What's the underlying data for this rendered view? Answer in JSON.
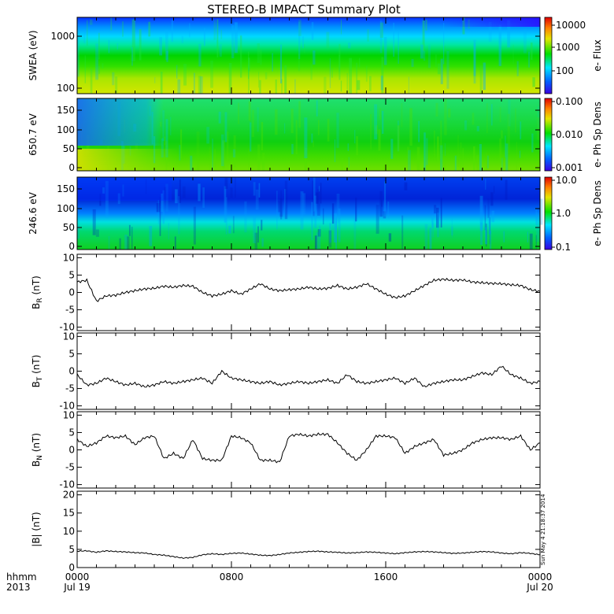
{
  "chart_data": {
    "type": "line",
    "title": "STEREO-B IMPACT Summary Plot",
    "x_axis": {
      "tick_labels": [
        "0000",
        "0800",
        "1600",
        "0000"
      ],
      "date_labels": [
        "Jul 19",
        "",
        "",
        "Jul 20"
      ],
      "row_labels": [
        "hhmm",
        "2013"
      ]
    },
    "timestamp": "Sun May  4 21:18:37 2014",
    "spectrograms": [
      {
        "id": "swea",
        "ylabel": "SWEA (eV)",
        "y_ticks": [
          "1000",
          "100"
        ],
        "colorbar_label": "e- Flux",
        "colorbar_ticks": [
          "10000",
          "1000",
          "100"
        ]
      },
      {
        "id": "pad650",
        "ylabel": "650.7 eV",
        "y_ticks": [
          "150",
          "100",
          "50",
          "0"
        ],
        "colorbar_label": "e- Ph Sp Dens",
        "colorbar_ticks": [
          "0.100",
          "0.010",
          "0.001"
        ]
      },
      {
        "id": "pad246",
        "ylabel": "246.6 eV",
        "y_ticks": [
          "150",
          "100",
          "50",
          "0"
        ],
        "colorbar_label": "e- Ph Sp Dens",
        "colorbar_ticks": [
          "10.0",
          "1.0",
          "0.1"
        ]
      }
    ],
    "series": [
      {
        "id": "br",
        "ylabel_main": "B",
        "ylabel_sub": "R",
        "ylabel_unit": "(nT)",
        "ylim": [
          -11,
          11
        ],
        "y_ticks": [
          "10",
          "5",
          "0",
          "-5",
          "-10"
        ],
        "x": [
          0,
          0.5,
          1,
          1.5,
          2,
          2.5,
          3,
          3.5,
          4,
          4.5,
          5,
          5.5,
          6,
          6.5,
          7,
          7.5,
          8,
          8.5,
          9,
          9.5,
          10,
          10.5,
          11,
          11.5,
          12,
          12.5,
          13,
          13.5,
          14,
          14.5,
          15,
          15.5,
          16,
          16.5,
          17,
          17.5,
          18,
          18.5,
          19,
          19.5,
          20,
          20.5,
          21,
          21.5,
          22,
          22.5,
          23,
          23.5,
          24
        ],
        "values": [
          3,
          3.5,
          -2.5,
          -1,
          -0.8,
          0,
          0.5,
          1,
          1.2,
          1.8,
          1.5,
          2,
          1.8,
          0,
          -1,
          -0.5,
          0.5,
          -0.5,
          1,
          2.5,
          1,
          0.5,
          0.8,
          1,
          1.5,
          1,
          1.2,
          2,
          1,
          1.5,
          2.5,
          1,
          -0.5,
          -1.5,
          -1,
          0.5,
          2,
          3.5,
          3.8,
          3.5,
          3.6,
          3,
          2.8,
          2.6,
          2.5,
          2.2,
          2,
          0.8,
          0.3
        ]
      },
      {
        "id": "bt",
        "ylabel_main": "B",
        "ylabel_sub": "T",
        "ylabel_unit": "(nT)",
        "ylim": [
          -11,
          11
        ],
        "y_ticks": [
          "10",
          "5",
          "0",
          "-5",
          "-10"
        ],
        "x": [
          0,
          0.5,
          1,
          1.5,
          2,
          2.5,
          3,
          3.5,
          4,
          4.5,
          5,
          5.5,
          6,
          6.5,
          7,
          7.5,
          8,
          8.5,
          9,
          9.5,
          10,
          10.5,
          11,
          11.5,
          12,
          12.5,
          13,
          13.5,
          14,
          14.5,
          15,
          15.5,
          16,
          16.5,
          17,
          17.5,
          18,
          18.5,
          19,
          19.5,
          20,
          20.5,
          21,
          21.5,
          22,
          22.5,
          23,
          23.5,
          24
        ],
        "values": [
          -1,
          -4,
          -3.5,
          -2,
          -3,
          -4,
          -3.5,
          -4.5,
          -4,
          -3,
          -3.5,
          -3,
          -2.5,
          -2,
          -3.5,
          0,
          -2,
          -2.5,
          -3,
          -3.5,
          -3,
          -4,
          -3.5,
          -3,
          -3.5,
          -3,
          -2.5,
          -3.5,
          -1,
          -3,
          -3.5,
          -3,
          -2.5,
          -2,
          -3.5,
          -2,
          -4.5,
          -3.5,
          -3,
          -2.5,
          -2.5,
          -1.5,
          -0.5,
          -1,
          1.5,
          -1,
          -2,
          -3.5,
          -3
        ]
      },
      {
        "id": "bn",
        "ylabel_main": "B",
        "ylabel_sub": "N",
        "ylabel_unit": "(nT)",
        "ylim": [
          -11,
          11
        ],
        "y_ticks": [
          "10",
          "5",
          "0",
          "-5",
          "-10"
        ],
        "x": [
          0,
          0.5,
          1,
          1.5,
          2,
          2.5,
          3,
          3.5,
          4,
          4.5,
          5,
          5.5,
          6,
          6.5,
          7,
          7.5,
          8,
          8.5,
          9,
          9.5,
          10,
          10.5,
          11,
          11.5,
          12,
          12.5,
          13,
          13.5,
          14,
          14.5,
          15,
          15.5,
          16,
          16.5,
          17,
          17.5,
          18,
          18.5,
          19,
          19.5,
          20,
          20.5,
          21,
          21.5,
          22,
          22.5,
          23,
          23.5,
          24
        ],
        "values": [
          3,
          1,
          2,
          4,
          3.5,
          4,
          1.5,
          3.5,
          4,
          -2.5,
          -1,
          -2.5,
          3,
          -2.5,
          -3,
          -3,
          4,
          3.5,
          2,
          -3,
          -3,
          -3.5,
          4,
          4.5,
          4,
          4.5,
          4.5,
          2,
          -1,
          -3,
          0,
          4,
          4,
          3.5,
          -1,
          1,
          2,
          3,
          -1.5,
          -1,
          0,
          2,
          3,
          3.5,
          3.5,
          3,
          4,
          0,
          2
        ]
      },
      {
        "id": "bmag",
        "ylabel_main": "|B|",
        "ylabel_sub": "",
        "ylabel_unit": "(nT)",
        "ylim": [
          0,
          21
        ],
        "y_ticks": [
          "20",
          "15",
          "10",
          "5",
          "0"
        ],
        "x": [
          0,
          0.5,
          1,
          1.5,
          2,
          2.5,
          3,
          3.5,
          4,
          4.5,
          5,
          5.5,
          6,
          6.5,
          7,
          7.5,
          8,
          8.5,
          9,
          9.5,
          10,
          10.5,
          11,
          11.5,
          12,
          12.5,
          13,
          13.5,
          14,
          14.5,
          15,
          15.5,
          16,
          16.5,
          17,
          17.5,
          18,
          18.5,
          19,
          19.5,
          20,
          20.5,
          21,
          21.5,
          22,
          22.5,
          23,
          23.5,
          24
        ],
        "values": [
          4.5,
          4.6,
          4.2,
          4.6,
          4.4,
          4.3,
          4.1,
          4,
          3.6,
          3.4,
          3,
          2.6,
          2.8,
          3.5,
          3.8,
          3.6,
          3.9,
          4,
          3.7,
          3.4,
          3.3,
          3.6,
          4,
          4.2,
          4.4,
          4.5,
          4.3,
          4.2,
          4,
          4.1,
          4.3,
          4.2,
          4,
          3.8,
          4.1,
          4.3,
          4.4,
          4.3,
          4.1,
          3.9,
          4,
          4.2,
          4.4,
          4.3,
          4,
          3.8,
          4.1,
          3.9,
          3.5
        ]
      }
    ]
  }
}
